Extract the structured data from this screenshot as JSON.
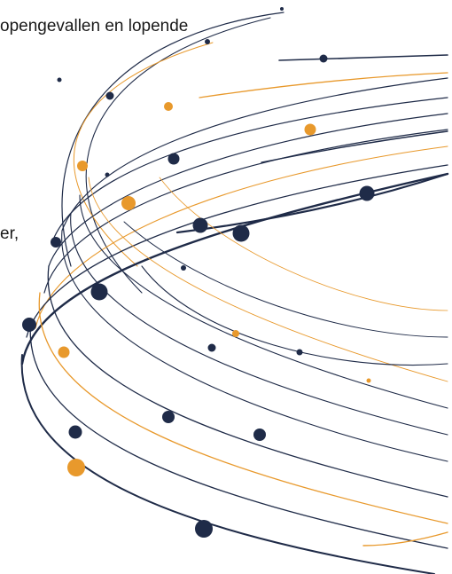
{
  "text": {
    "line_top": "opengevallen en lopende",
    "line_mid": "er,"
  },
  "colors": {
    "navy": "#1f2b48",
    "orange": "#e8992c",
    "background": "#ffffff"
  }
}
